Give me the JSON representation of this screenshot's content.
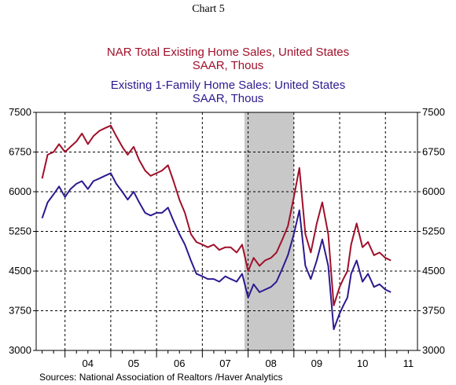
{
  "chart_title": "Chart 5",
  "source": "Sources:  National Association of Realtors /Haver Analytics",
  "colors": {
    "red": "#a0102a",
    "blue": "#2c1a8f",
    "recession": "#c8c8c8",
    "grid": "#000000"
  },
  "chart_data": {
    "type": "line",
    "series": [
      {
        "name": "NAR Total Existing Home Sales, United States",
        "unit": "SAAR, Thous",
        "color": "#a0102a",
        "x": [
          2003.5,
          2003.62,
          2003.75,
          2003.87,
          2004.0,
          2004.12,
          2004.25,
          2004.37,
          2004.5,
          2004.62,
          2004.75,
          2004.87,
          2005.0,
          2005.12,
          2005.25,
          2005.37,
          2005.5,
          2005.62,
          2005.75,
          2005.87,
          2006.0,
          2006.12,
          2006.25,
          2006.37,
          2006.5,
          2006.62,
          2006.75,
          2006.87,
          2007.0,
          2007.12,
          2007.25,
          2007.37,
          2007.5,
          2007.62,
          2007.75,
          2007.87,
          2008.0,
          2008.12,
          2008.25,
          2008.37,
          2008.5,
          2008.62,
          2008.75,
          2008.87,
          2009.0,
          2009.12,
          2009.25,
          2009.37,
          2009.5,
          2009.62,
          2009.75,
          2009.87,
          2010.0,
          2010.08,
          2010.17,
          2010.25,
          2010.37,
          2010.5,
          2010.62,
          2010.75,
          2010.87,
          2011.0,
          2011.12
        ],
        "values": [
          6250,
          6700,
          6750,
          6900,
          6750,
          6850,
          6950,
          7100,
          6900,
          7050,
          7150,
          7200,
          7250,
          7050,
          6850,
          6700,
          6850,
          6600,
          6400,
          6300,
          6350,
          6400,
          6500,
          6200,
          5850,
          5600,
          5200,
          5050,
          5000,
          4950,
          5000,
          4900,
          4950,
          4950,
          4850,
          5000,
          4500,
          4750,
          4600,
          4700,
          4750,
          4850,
          5100,
          5350,
          5900,
          6450,
          5200,
          4850,
          5400,
          5800,
          5200,
          3850,
          4200,
          4350,
          4500,
          5000,
          5400,
          4950,
          5050,
          4800,
          4850,
          4750,
          4700
        ]
      },
      {
        "name": "Existing 1-Family Home Sales: United States",
        "unit": "SAAR, Thous",
        "color": "#2c1a8f",
        "x": [
          2003.5,
          2003.62,
          2003.75,
          2003.87,
          2004.0,
          2004.12,
          2004.25,
          2004.37,
          2004.5,
          2004.62,
          2004.75,
          2004.87,
          2005.0,
          2005.12,
          2005.25,
          2005.37,
          2005.5,
          2005.62,
          2005.75,
          2005.87,
          2006.0,
          2006.12,
          2006.25,
          2006.37,
          2006.5,
          2006.62,
          2006.75,
          2006.87,
          2007.0,
          2007.12,
          2007.25,
          2007.37,
          2007.5,
          2007.62,
          2007.75,
          2007.87,
          2008.0,
          2008.12,
          2008.25,
          2008.37,
          2008.5,
          2008.62,
          2008.75,
          2008.87,
          2009.0,
          2009.12,
          2009.25,
          2009.37,
          2009.5,
          2009.62,
          2009.75,
          2009.87,
          2010.0,
          2010.08,
          2010.17,
          2010.25,
          2010.37,
          2010.5,
          2010.62,
          2010.75,
          2010.87,
          2011.0,
          2011.12
        ],
        "values": [
          5500,
          5800,
          5950,
          6100,
          5900,
          6050,
          6150,
          6200,
          6050,
          6200,
          6250,
          6300,
          6350,
          6150,
          6000,
          5850,
          6000,
          5800,
          5600,
          5550,
          5600,
          5600,
          5700,
          5450,
          5200,
          5000,
          4700,
          4450,
          4400,
          4350,
          4350,
          4300,
          4400,
          4350,
          4300,
          4450,
          4000,
          4250,
          4100,
          4150,
          4200,
          4300,
          4550,
          4800,
          5200,
          5650,
          4600,
          4350,
          4700,
          5100,
          4600,
          3400,
          3700,
          3850,
          4000,
          4450,
          4700,
          4300,
          4450,
          4200,
          4250,
          4150,
          4100
        ]
      }
    ],
    "xlim": [
      2003.37,
      2011.7
    ],
    "x_tick_labels": [
      "04",
      "05",
      "06",
      "07",
      "08",
      "09",
      "10",
      "11"
    ],
    "x_tick_positions": [
      2004.0,
      2005.0,
      2006.0,
      2007.0,
      2008.0,
      2009.0,
      2010.0,
      2011.0
    ],
    "ylim": [
      3000,
      7500
    ],
    "y_ticks": [
      3000,
      3750,
      4500,
      5250,
      6000,
      6750,
      7500
    ],
    "y_tick_labels": [
      "3000",
      "3750",
      "4500",
      "5250",
      "6000",
      "6750",
      "7500"
    ],
    "gridlines": "dashed, both axes",
    "recession_shading": [
      2007.92,
      2009.0
    ]
  }
}
